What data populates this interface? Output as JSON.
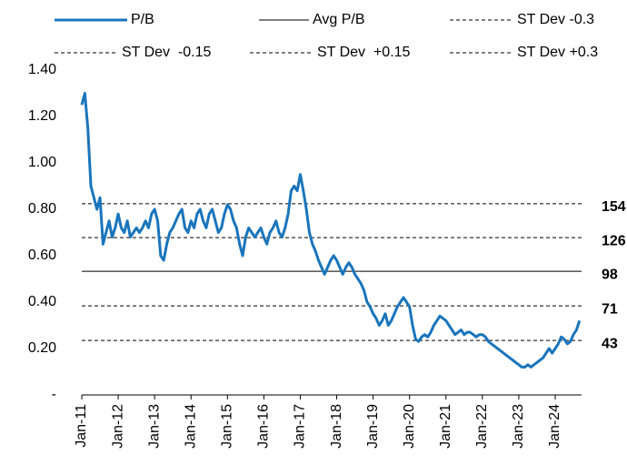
{
  "chart_data": {
    "type": "line",
    "categories": [
      "Jan-11",
      null,
      null,
      null,
      null,
      null,
      null,
      null,
      null,
      null,
      null,
      null,
      "Jan-12",
      null,
      null,
      null,
      null,
      null,
      null,
      null,
      null,
      null,
      null,
      null,
      "Jan-13",
      null,
      null,
      null,
      null,
      null,
      null,
      null,
      null,
      null,
      null,
      null,
      "Jan-14",
      null,
      null,
      null,
      null,
      null,
      null,
      null,
      null,
      null,
      null,
      null,
      "Jan-15",
      null,
      null,
      null,
      null,
      null,
      null,
      null,
      null,
      null,
      null,
      null,
      "Jan-16",
      null,
      null,
      null,
      null,
      null,
      null,
      null,
      null,
      null,
      null,
      null,
      "Jan-17",
      null,
      null,
      null,
      null,
      null,
      null,
      null,
      null,
      null,
      null,
      null,
      "Jan-18",
      null,
      null,
      null,
      null,
      null,
      null,
      null,
      null,
      null,
      null,
      null,
      "Jan-19",
      null,
      null,
      null,
      null,
      null,
      null,
      null,
      null,
      null,
      null,
      null,
      "Jan-20",
      null,
      null,
      null,
      null,
      null,
      null,
      null,
      null,
      null,
      null,
      null,
      "Jan-21",
      null,
      null,
      null,
      null,
      null,
      null,
      null,
      null,
      null,
      null,
      null,
      "Jan-22",
      null,
      null,
      null,
      null,
      null,
      null,
      null,
      null,
      null,
      null,
      null,
      "Jan-23",
      null,
      null,
      null,
      null,
      null,
      null,
      null,
      null,
      null,
      null,
      null,
      "Jan-24",
      null,
      null,
      null,
      null,
      null,
      null,
      null,
      null
    ],
    "series": [
      {
        "name": "P/B",
        "color": "#1a75bc",
        "values": [
          1.25,
          1.3,
          1.15,
          0.9,
          0.85,
          0.8,
          0.85,
          0.65,
          0.7,
          0.75,
          0.68,
          0.72,
          0.78,
          0.72,
          0.7,
          0.75,
          0.68,
          0.7,
          0.72,
          0.7,
          0.72,
          0.75,
          0.72,
          0.78,
          0.8,
          0.75,
          0.6,
          0.58,
          0.65,
          0.7,
          0.72,
          0.75,
          0.78,
          0.8,
          0.72,
          0.7,
          0.75,
          0.72,
          0.78,
          0.8,
          0.75,
          0.72,
          0.78,
          0.8,
          0.75,
          0.7,
          0.72,
          0.78,
          0.82,
          0.8,
          0.75,
          0.72,
          0.65,
          0.6,
          0.68,
          0.72,
          0.7,
          0.68,
          0.7,
          0.72,
          0.68,
          0.65,
          0.7,
          0.72,
          0.75,
          0.7,
          0.68,
          0.72,
          0.78,
          0.88,
          0.9,
          0.88,
          0.95,
          0.88,
          0.8,
          0.7,
          0.65,
          0.62,
          0.58,
          0.55,
          0.52,
          0.55,
          0.58,
          0.6,
          0.58,
          0.55,
          0.52,
          0.55,
          0.57,
          0.55,
          0.52,
          0.5,
          0.48,
          0.45,
          0.4,
          0.38,
          0.35,
          0.33,
          0.3,
          0.32,
          0.35,
          0.3,
          0.32,
          0.35,
          0.38,
          0.4,
          0.42,
          0.4,
          0.38,
          0.3,
          0.24,
          0.23,
          0.25,
          0.26,
          0.25,
          0.27,
          0.3,
          0.32,
          0.34,
          0.33,
          0.32,
          0.3,
          0.28,
          0.26,
          0.27,
          0.28,
          0.26,
          0.27,
          0.27,
          0.26,
          0.25,
          0.26,
          0.26,
          0.25,
          0.23,
          0.22,
          0.21,
          0.2,
          0.19,
          0.18,
          0.17,
          0.16,
          0.15,
          0.14,
          0.13,
          0.12,
          0.12,
          0.13,
          0.12,
          0.13,
          0.14,
          0.15,
          0.16,
          0.18,
          0.2,
          0.18,
          0.2,
          0.22,
          0.25,
          0.24,
          0.22,
          0.23,
          0.26,
          0.28,
          0.32
        ]
      }
    ],
    "reference_lines": [
      {
        "name": "Avg P/B",
        "value": 0.533,
        "label": "98",
        "style": "solid",
        "color": "#000000"
      },
      {
        "name": "ST Dev -0.3",
        "value": 0.235,
        "label": "43",
        "style": "dashed",
        "color": "#000000"
      },
      {
        "name": "ST Dev  -0.15",
        "value": 0.384,
        "label": "71",
        "style": "dashed",
        "color": "#000000"
      },
      {
        "name": "ST Dev  +0.15",
        "value": 0.678,
        "label": "126",
        "style": "dashed",
        "color": "#000000"
      },
      {
        "name": "ST Dev +0.3",
        "value": 0.824,
        "label": "154",
        "style": "dashed",
        "color": "#000000"
      }
    ],
    "ylim": [
      0,
      1.4
    ],
    "yticks": [
      {
        "value": 0,
        "label": "-"
      },
      {
        "value": 0.2,
        "label": "0.20"
      },
      {
        "value": 0.4,
        "label": "0.40"
      },
      {
        "value": 0.6,
        "label": "0.60"
      },
      {
        "value": 0.8,
        "label": "0.80"
      },
      {
        "value": 1.0,
        "label": "1.00"
      },
      {
        "value": 1.2,
        "label": "1.20"
      },
      {
        "value": 1.4,
        "label": "1.40"
      }
    ],
    "grid": false
  }
}
